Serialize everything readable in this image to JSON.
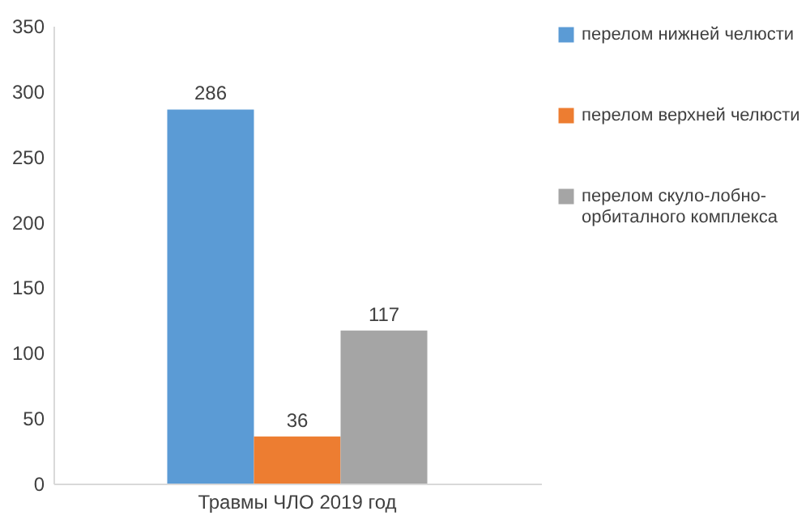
{
  "chart_data": {
    "type": "bar",
    "categories": [
      "Травмы ЧЛО 2019 год"
    ],
    "series": [
      {
        "name": "перелом нижней челюсти",
        "color": "#5b9bd5",
        "values": [
          286
        ]
      },
      {
        "name": "перелом верхней челюсти",
        "color": "#ed7d31",
        "values": [
          36
        ]
      },
      {
        "name": "перелом скуло-лобно-орбиталного комплекса",
        "color": "#a5a5a5",
        "values": [
          117
        ]
      }
    ],
    "ylim": [
      0,
      350
    ],
    "yticks": [
      0,
      50,
      100,
      150,
      200,
      250,
      300,
      350
    ],
    "grid": false,
    "legend": "right",
    "data_labels": true
  }
}
